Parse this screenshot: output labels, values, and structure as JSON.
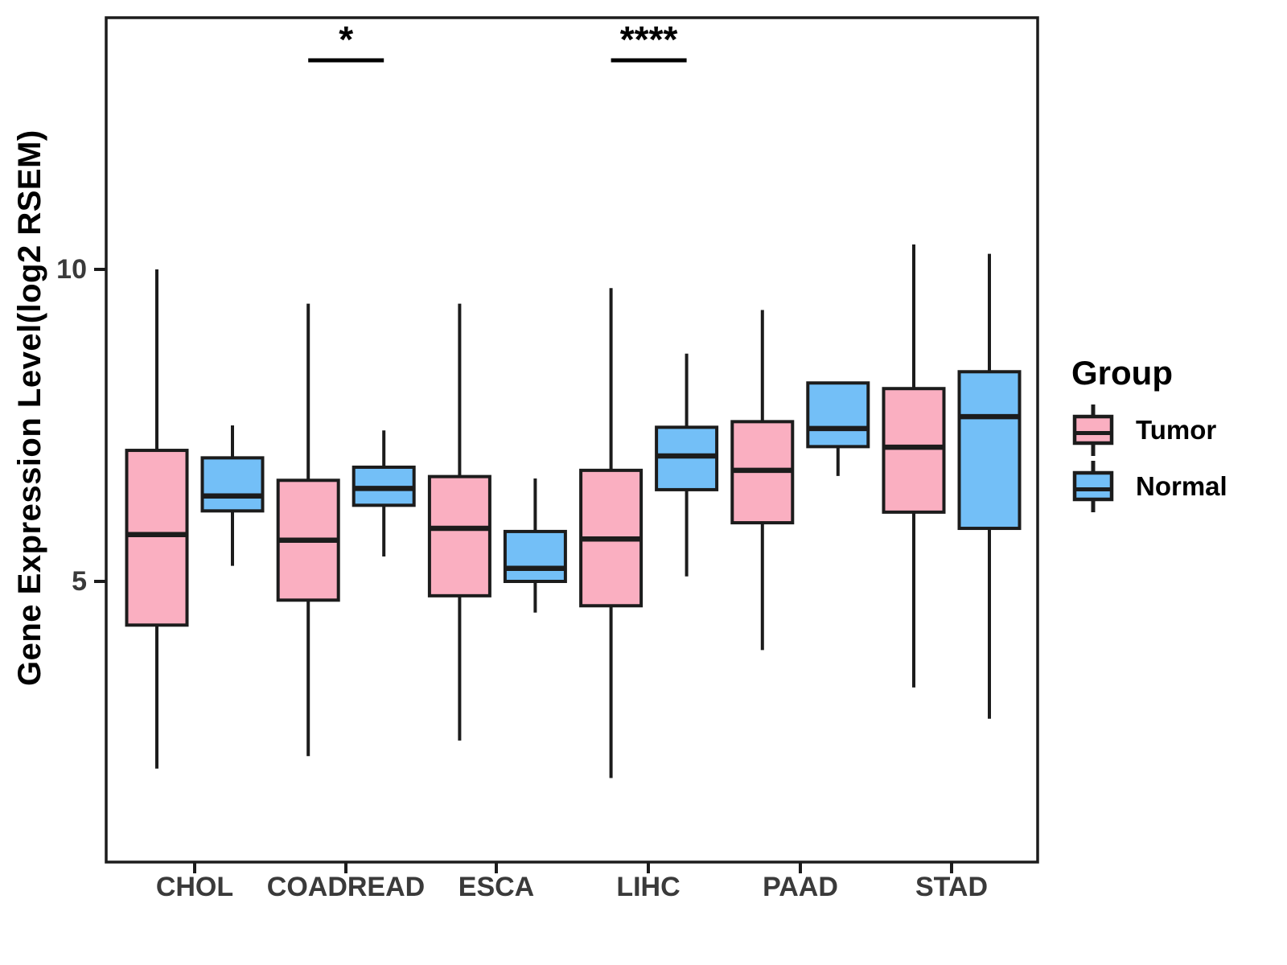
{
  "chart_data": {
    "type": "boxplot",
    "title": "",
    "xlabel": "",
    "ylabel": "Gene Expression Level(log2 RSEM)",
    "ylim": [
      0.5,
      14.0
    ],
    "yticks": [
      {
        "value": 10,
        "label": "10"
      },
      {
        "value": 5,
        "label": "5"
      }
    ],
    "grid": "off",
    "categories": [
      "CHOL",
      "COADREAD",
      "ESCA",
      "LIHC",
      "PAAD",
      "STAD"
    ],
    "legend": {
      "title": "Group",
      "position": "right"
    },
    "series": [
      {
        "name": "Tumor",
        "color": "#FAAFC1",
        "boxes": [
          {
            "category": "CHOL",
            "min": 2.0,
            "q1": 4.3,
            "median": 5.75,
            "q3": 7.1,
            "max": 10.0
          },
          {
            "category": "COADREAD",
            "min": 2.2,
            "q1": 4.7,
            "median": 5.66,
            "q3": 6.62,
            "max": 9.45
          },
          {
            "category": "ESCA",
            "min": 2.45,
            "q1": 4.77,
            "median": 5.85,
            "q3": 6.68,
            "max": 9.45
          },
          {
            "category": "LIHC",
            "min": 1.85,
            "q1": 4.61,
            "median": 5.68,
            "q3": 6.78,
            "max": 9.7
          },
          {
            "category": "PAAD",
            "min": 3.9,
            "q1": 5.94,
            "median": 6.78,
            "q3": 7.56,
            "max": 9.35
          },
          {
            "category": "STAD",
            "min": 3.3,
            "q1": 6.11,
            "median": 7.15,
            "q3": 8.09,
            "max": 10.4
          }
        ]
      },
      {
        "name": "Normal",
        "color": "#73BFF7",
        "boxes": [
          {
            "category": "CHOL",
            "min": 5.25,
            "q1": 6.13,
            "median": 6.37,
            "q3": 6.98,
            "max": 7.5
          },
          {
            "category": "COADREAD",
            "min": 5.4,
            "q1": 6.22,
            "median": 6.49,
            "q3": 6.83,
            "max": 7.42
          },
          {
            "category": "ESCA",
            "min": 4.5,
            "q1": 5.0,
            "median": 5.21,
            "q3": 5.8,
            "max": 6.65
          },
          {
            "category": "LIHC",
            "min": 5.08,
            "q1": 6.47,
            "median": 7.01,
            "q3": 7.47,
            "max": 8.65
          },
          {
            "category": "PAAD",
            "min": 6.69,
            "q1": 7.16,
            "median": 7.45,
            "q3": 8.18,
            "max": 8.18
          },
          {
            "category": "STAD",
            "min": 2.8,
            "q1": 5.85,
            "median": 7.64,
            "q3": 8.36,
            "max": 10.25
          }
        ]
      }
    ],
    "annotations": [
      {
        "category": "COADREAD",
        "label": "*",
        "bar_y": 13.35
      },
      {
        "category": "LIHC",
        "label": "****",
        "bar_y": 13.35
      }
    ]
  }
}
